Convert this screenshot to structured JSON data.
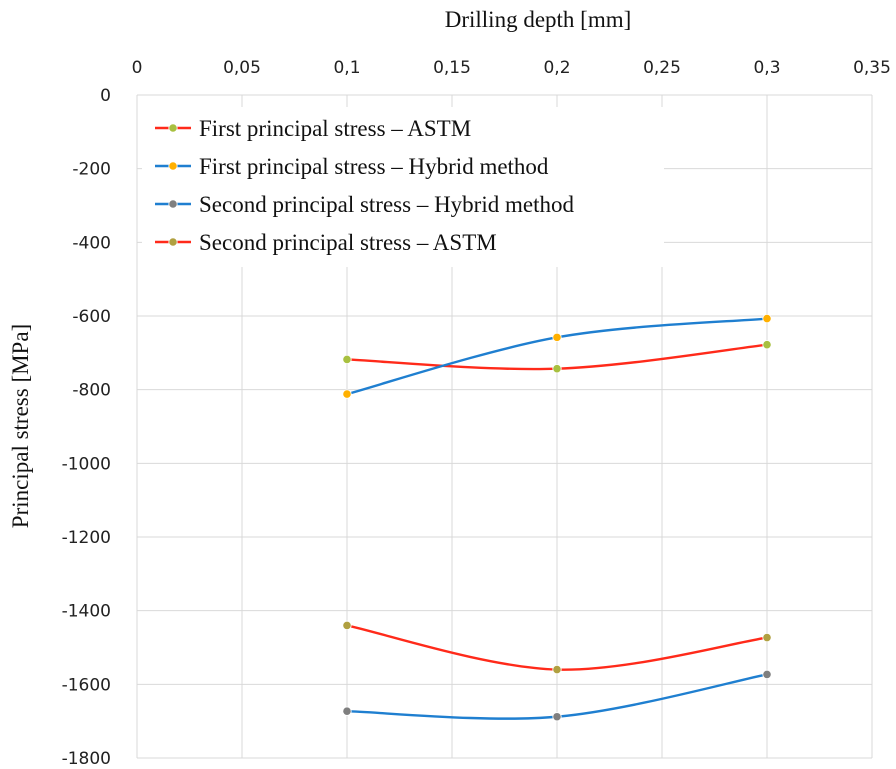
{
  "chart_data": {
    "type": "line",
    "xlabel": "Drilling depth [mm]",
    "ylabel": "Principal stress [MPa]",
    "xlim": [
      0,
      0.35
    ],
    "ylim": [
      -1800,
      0
    ],
    "x_axis_position": "top",
    "y_axis_inverted": true,
    "x_ticks": [
      "0",
      "0,05",
      "0,1",
      "0,15",
      "0,2",
      "0,25",
      "0,3",
      "0,35"
    ],
    "y_ticks": [
      "0",
      "-200",
      "-400",
      "-600",
      "-800",
      "-1000",
      "-1200",
      "-1400",
      "-1600",
      "-1800"
    ],
    "grid": true,
    "legend_position": "top-left",
    "series": [
      {
        "name": "First principal stress – ASTM",
        "x": [
          0.1,
          0.2,
          0.3
        ],
        "y": [
          -718,
          -743,
          -678
        ],
        "line_color": "#ff2a1a",
        "marker_color": "#a8c040"
      },
      {
        "name": "First principal stress – Hybrid method",
        "x": [
          0.1,
          0.2,
          0.3
        ],
        "y": [
          -812,
          -658,
          -607
        ],
        "line_color": "#1f7fd0",
        "marker_color": "#ffb000"
      },
      {
        "name": "Second principal stress – Hybrid method",
        "x": [
          0.1,
          0.2,
          0.3
        ],
        "y": [
          -1673,
          -1688,
          -1573
        ],
        "line_color": "#1f7fd0",
        "marker_color": "#7f7f7f"
      },
      {
        "name": "Second principal stress – ASTM",
        "x": [
          0.1,
          0.2,
          0.3
        ],
        "y": [
          -1440,
          -1560,
          -1473
        ],
        "line_color": "#ff2a1a",
        "marker_color": "#b0a040"
      }
    ]
  }
}
